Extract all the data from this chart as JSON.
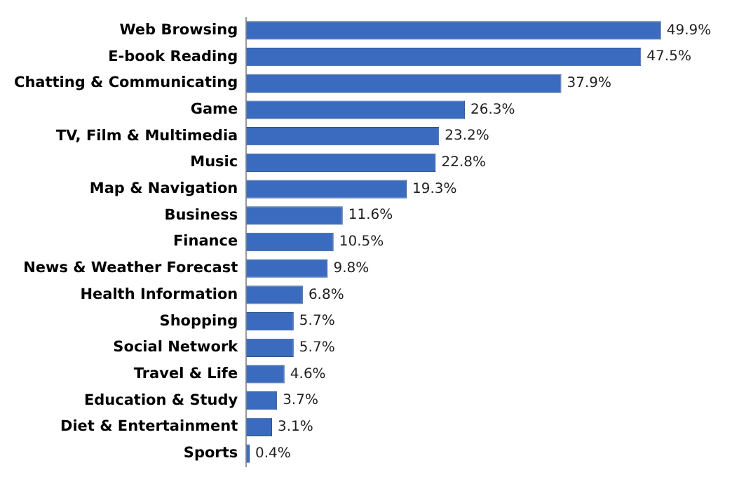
{
  "chart_data": {
    "type": "bar",
    "orientation": "horizontal",
    "categories": [
      "Web Browsing",
      "E-book Reading",
      "Chatting & Communicating",
      "Game",
      "TV, Film & Multimedia",
      "Music",
      "Map & Navigation",
      "Business",
      "Finance",
      "News & Weather Forecast",
      "Health Information",
      "Shopping",
      "Social Network",
      "Travel & Life",
      "Education & Study",
      "Diet & Entertainment",
      "Sports"
    ],
    "values": [
      49.9,
      47.5,
      37.9,
      26.3,
      23.2,
      22.8,
      19.3,
      11.6,
      10.5,
      9.8,
      6.8,
      5.7,
      5.7,
      4.6,
      3.7,
      3.1,
      0.4
    ],
    "value_labels": [
      "49.9%",
      "47.5%",
      "37.9%",
      "26.3%",
      "23.2%",
      "22.8%",
      "19.3%",
      "11.6%",
      "10.5%",
      "9.8%",
      "6.8%",
      "5.7%",
      "5.7%",
      "4.6%",
      "3.7%",
      "3.1%",
      "0.4%"
    ],
    "color": "#3a6bbf"
  }
}
